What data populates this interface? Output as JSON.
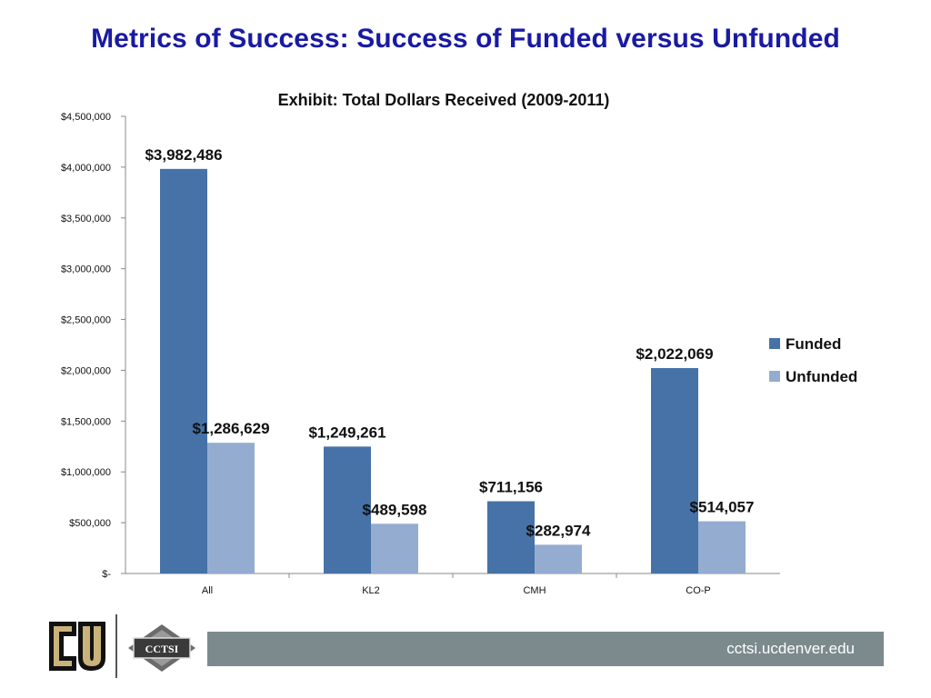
{
  "slide": {
    "title": "Metrics of Success:  Success of Funded versus Unfunded"
  },
  "footer": {
    "url": "cctsi.ucdenver.edu",
    "logos": [
      {
        "name": "cu-logo-icon",
        "text": "CU"
      },
      {
        "name": "cctsi-logo-icon",
        "text": "CCTSI"
      }
    ]
  },
  "chart_data": {
    "type": "bar",
    "title": "Exhibit: Total Dollars Received (2009-2011)",
    "xlabel": "",
    "ylabel": "",
    "categories": [
      "All",
      "KL2",
      "CMH",
      "CO-P"
    ],
    "series": [
      {
        "name": "Funded",
        "color": "#4672a8",
        "values": [
          3982486,
          1249261,
          711156,
          2022069
        ],
        "labels": [
          "$3,982,486",
          "$1,249,261",
          "$711,156",
          "$2,022,069"
        ]
      },
      {
        "name": "Unfunded",
        "color": "#95acd1",
        "values": [
          1286629,
          489598,
          282974,
          514057
        ],
        "labels": [
          "$1,286,629",
          "$489,598",
          "$282,974",
          "$514,057"
        ]
      }
    ],
    "ylim": [
      0,
      4500000
    ],
    "yticks": [
      0,
      500000,
      1000000,
      1500000,
      2000000,
      2500000,
      3000000,
      3500000,
      4000000,
      4500000
    ],
    "ytick_labels": [
      "$-",
      "$500,000",
      "$1,000,000",
      "$1,500,000",
      "$2,000,000",
      "$2,500,000",
      "$3,000,000",
      "$3,500,000",
      "$4,000,000",
      "$4,500,000"
    ],
    "grid": false,
    "legend": "right"
  }
}
